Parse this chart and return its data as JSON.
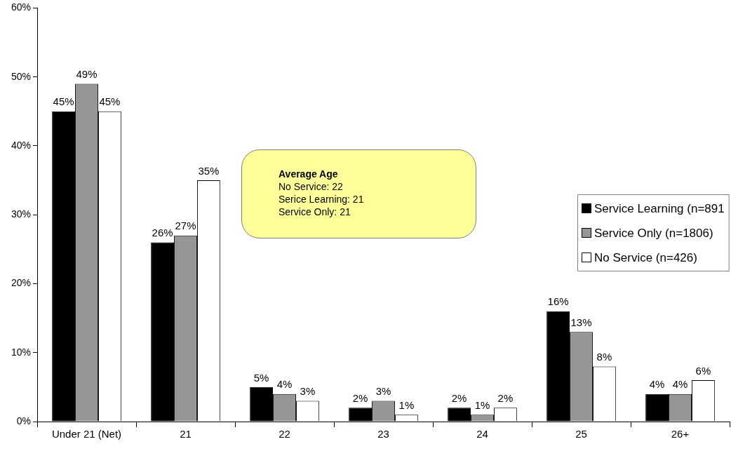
{
  "chart_data": {
    "type": "bar",
    "categories": [
      "Under 21 (Net)",
      "21",
      "22",
      "23",
      "24",
      "25",
      "26+"
    ],
    "series": [
      {
        "name": "Service Learning (n=891",
        "color": "#000000",
        "values": [
          45,
          26,
          5,
          2,
          2,
          16,
          4
        ],
        "value_labels": [
          "45%",
          "26%",
          "5%",
          "2%",
          "2%",
          "16%",
          "4%"
        ]
      },
      {
        "name": "Service Only (n=1806)",
        "color": "#969696",
        "values": [
          49,
          27,
          4,
          3,
          1,
          13,
          4
        ],
        "value_labels": [
          "49%",
          "27%",
          "4%",
          "3%",
          "1%",
          "13%",
          "4%"
        ]
      },
      {
        "name": "No Service (n=426)",
        "color": "#ffffff",
        "values": [
          45,
          35,
          3,
          1,
          2,
          8,
          6
        ],
        "value_labels": [
          "45%",
          "35%",
          "3%",
          "1%",
          "2%",
          "8%",
          "6%"
        ]
      }
    ],
    "ylim": [
      0,
      60
    ],
    "yticks": [
      {
        "value": 0,
        "label": "0%"
      },
      {
        "value": 10,
        "label": "10%"
      },
      {
        "value": 20,
        "label": "20%"
      },
      {
        "value": 30,
        "label": "30%"
      },
      {
        "value": 40,
        "label": "40%"
      },
      {
        "value": 50,
        "label": "50%"
      },
      {
        "value": 60,
        "label": "60%"
      }
    ],
    "legend": "right",
    "annotations": [
      "Average Age",
      "No Service: 22",
      "Serice Learning: 21",
      "Service Only: 21"
    ]
  }
}
